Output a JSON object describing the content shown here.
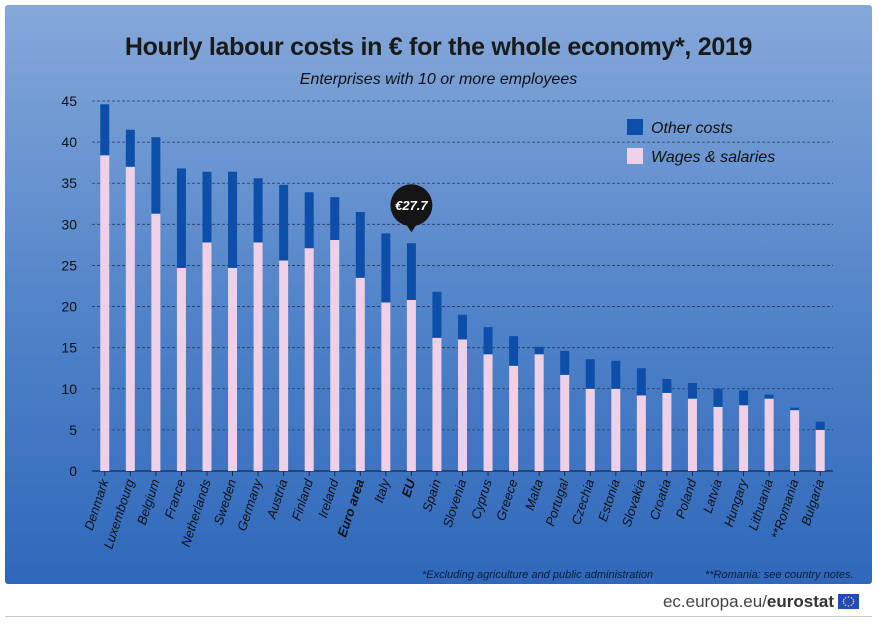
{
  "title": "Hourly labour costs in € for the whole economy*, 2019",
  "subtitle": "Enterprises with 10 or more employees",
  "footnote_1": "*Excluding agriculture and public administration",
  "footnote_2": "**Romania: see country notes.",
  "source": {
    "site": "ec.europa.eu/",
    "brand": "eurostat"
  },
  "icons": {
    "flag": "eu-flag-icon"
  },
  "colors": {
    "background_top": "#85a8d9",
    "background_bottom": "#2f68bb",
    "other_costs": "#0d4fa8",
    "wages": "#efd0e6",
    "callout": "#151515"
  },
  "chart_data": {
    "type": "bar",
    "stacked": true,
    "title": "Hourly labour costs in € for the whole economy*, 2019",
    "subtitle": "Enterprises with 10 or more employees",
    "xlabel": "",
    "ylabel": "",
    "ylim": [
      0,
      45
    ],
    "yticks": [
      0,
      5,
      10,
      15,
      20,
      25,
      30,
      35,
      40,
      45
    ],
    "grid": true,
    "legend_position": "top-right",
    "categories": [
      "Denmark",
      "Luxembourg",
      "Belgium",
      "France",
      "Netherlands",
      "Sweden",
      "Germany",
      "Austria",
      "Finland",
      "Ireland",
      "Euro area",
      "Italy",
      "EU",
      "Spain",
      "Slovenia",
      "Cyprus",
      "Greece",
      "Malta",
      "Portugal",
      "Czechia",
      "Estonia",
      "Slovakia",
      "Croatia",
      "Poland",
      "Latvia",
      "Hungary",
      "Lithuania",
      "**Romania",
      "Bulgaria"
    ],
    "bold_categories": [
      "Euro area",
      "EU"
    ],
    "series": [
      {
        "name": "Wages & salaries",
        "color": "#efd0e6",
        "values": [
          38.4,
          37.0,
          31.3,
          24.7,
          27.8,
          24.7,
          27.8,
          25.6,
          27.1,
          28.1,
          23.5,
          20.5,
          20.8,
          16.2,
          16.0,
          14.2,
          12.8,
          14.2,
          11.7,
          10.0,
          10.0,
          9.2,
          9.5,
          8.8,
          7.8,
          8.0,
          8.8,
          7.4,
          5.0
        ]
      },
      {
        "name": "Other costs",
        "color": "#0d4fa8",
        "values": [
          6.2,
          4.5,
          9.3,
          12.1,
          8.6,
          11.7,
          7.8,
          9.2,
          6.8,
          5.2,
          8.0,
          8.4,
          6.9,
          5.6,
          3.0,
          3.3,
          3.6,
          0.9,
          2.9,
          3.6,
          3.4,
          3.3,
          1.7,
          1.9,
          2.2,
          1.8,
          0.5,
          0.3,
          1.0
        ]
      }
    ],
    "annotation": {
      "category": "EU",
      "label": "€27.7"
    }
  }
}
